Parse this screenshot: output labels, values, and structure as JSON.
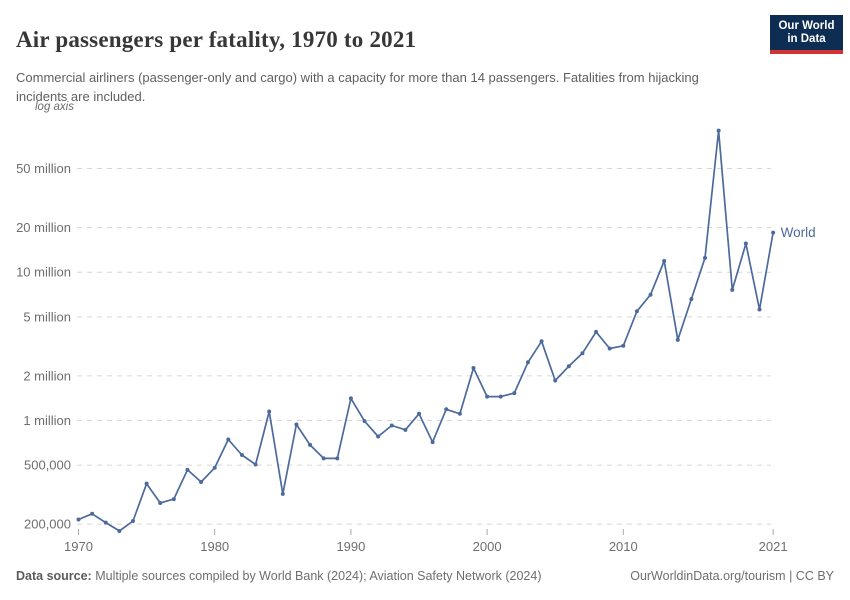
{
  "header": {
    "title": "Air passengers per fatality, 1970 to 2021",
    "subtitle": "Commercial airliners (passenger-only and cargo) with a capacity for more than 14 passengers. Fatalities from hijacking incidents are included.",
    "logo": {
      "line1": "Our World",
      "line2": "in Data"
    }
  },
  "chart": {
    "axis_note": "log axis",
    "series_label": "World"
  },
  "colors": {
    "line": "#4c6a9c",
    "logo_navy": "#0d2d52",
    "logo_red": "#cf3433",
    "grid": "#d6d6d6",
    "tick_text": "#6e6e6e"
  },
  "chart_data": {
    "type": "line",
    "title": "Air passengers per fatality, 1970 to 2021",
    "xlabel": "",
    "ylabel": "",
    "yscale": "log",
    "grid": "horizontal-dashed",
    "legend_position": "end-of-line-label",
    "x": [
      1970,
      1971,
      1972,
      1973,
      1974,
      1975,
      1976,
      1977,
      1978,
      1979,
      1980,
      1981,
      1982,
      1983,
      1984,
      1985,
      1986,
      1987,
      1988,
      1989,
      1990,
      1991,
      1992,
      1993,
      1994,
      1995,
      1996,
      1997,
      1998,
      1999,
      2000,
      2001,
      2002,
      2003,
      2004,
      2005,
      2006,
      2007,
      2008,
      2009,
      2010,
      2011,
      2012,
      2013,
      2014,
      2015,
      2016,
      2017,
      2018,
      2019,
      2020,
      2021
    ],
    "series": [
      {
        "name": "World",
        "color": "#4c6a9c",
        "values": [
          215000,
          235000,
          205000,
          180000,
          210000,
          375000,
          278000,
          295000,
          465000,
          385000,
          480000,
          745000,
          585000,
          505000,
          1150000,
          320000,
          940000,
          685000,
          555000,
          555000,
          1410000,
          990000,
          780000,
          925000,
          865000,
          1110000,
          715000,
          1190000,
          1110000,
          2260000,
          1450000,
          1450000,
          1530000,
          2470000,
          3420000,
          1860000,
          2320000,
          2840000,
          3960000,
          3060000,
          3190000,
          5450000,
          7050000,
          11900000,
          3500000,
          6600000,
          12500000,
          90000000,
          7600000,
          15600000,
          5600000,
          18500000
        ]
      }
    ],
    "yticks": [
      {
        "value": 200000,
        "label": "200,000"
      },
      {
        "value": 500000,
        "label": "500,000"
      },
      {
        "value": 1000000,
        "label": "1 million"
      },
      {
        "value": 2000000,
        "label": "2 million"
      },
      {
        "value": 5000000,
        "label": "5 million"
      },
      {
        "value": 10000000,
        "label": "10 million"
      },
      {
        "value": 20000000,
        "label": "20 million"
      },
      {
        "value": 50000000,
        "label": "50 million"
      }
    ],
    "xticks": [
      1970,
      1980,
      1990,
      2000,
      2010,
      2021
    ]
  },
  "footer": {
    "source_label": "Data source:",
    "source_text": " Multiple sources compiled by World Bank (2024); Aviation Safety Network (2024)",
    "right_text": "OurWorldinData.org/tourism | CC BY"
  }
}
